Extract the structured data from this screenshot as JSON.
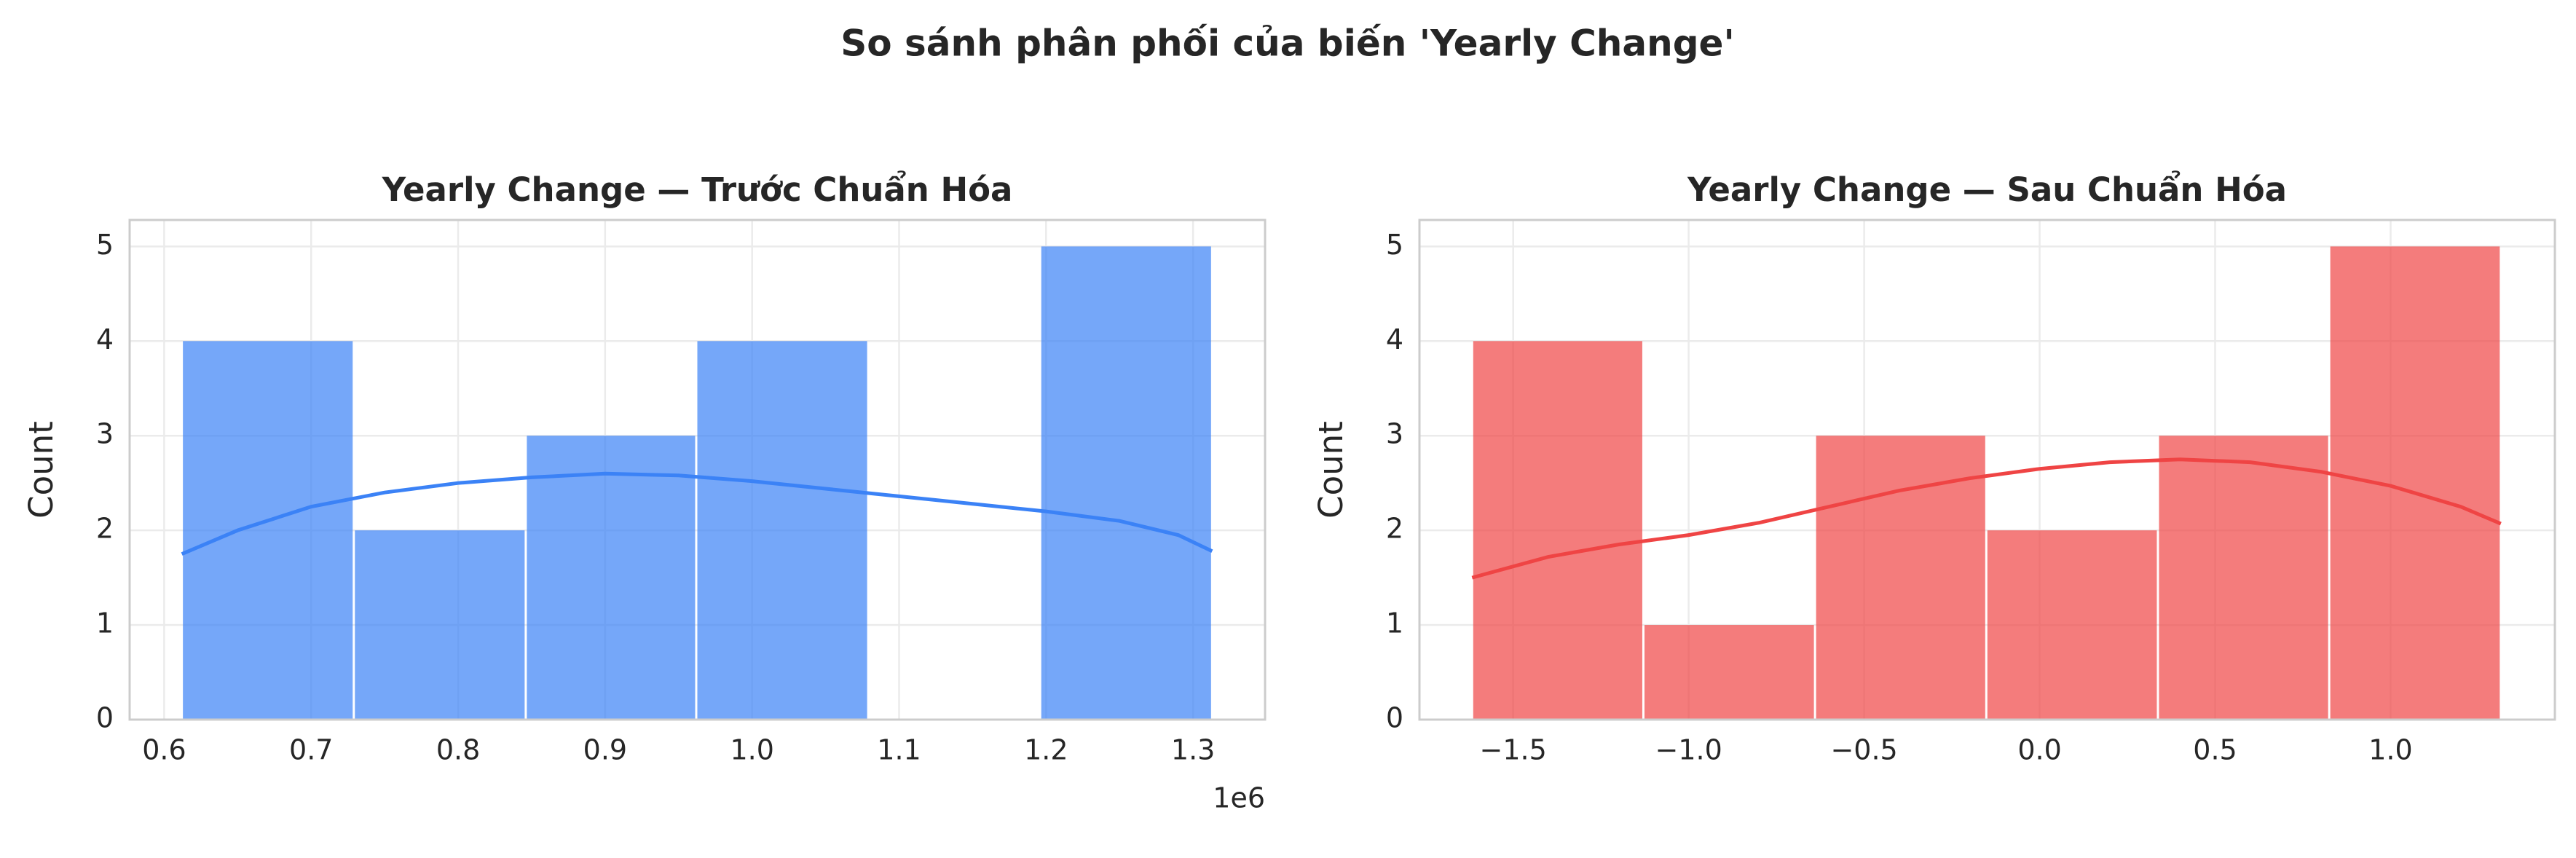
{
  "title": "So sánh phân phối của biến 'Yearly Change'",
  "chart_data": [
    {
      "type": "histogram",
      "title": "Yearly Change — Trước Chuẩn Hóa",
      "ylabel": "Count",
      "offset_label": "1e6",
      "color": "#3b82f6",
      "grid": true,
      "bins": [
        0.612,
        0.729,
        0.846,
        0.962,
        1.079,
        1.196,
        1.313
      ],
      "values": [
        4,
        2,
        3,
        4,
        0,
        5
      ],
      "kde": {
        "x": [
          0.612,
          0.65,
          0.7,
          0.75,
          0.8,
          0.85,
          0.9,
          0.95,
          1.0,
          1.05,
          1.1,
          1.15,
          1.2,
          1.25,
          1.29,
          1.313
        ],
        "values": [
          1.75,
          2.0,
          2.25,
          2.4,
          2.5,
          2.56,
          2.6,
          2.58,
          2.52,
          2.44,
          2.36,
          2.28,
          2.2,
          2.1,
          1.95,
          1.78
        ]
      },
      "xlim": [
        0.5765,
        1.349
      ],
      "ylim": [
        0,
        5.28
      ],
      "xticks": [
        0.6,
        0.7,
        0.8,
        0.9,
        {
          "value": 1.0,
          "label": "1.0"
        },
        1.1,
        1.2,
        1.3
      ],
      "yticks": [
        0,
        1,
        2,
        3,
        4,
        5
      ]
    },
    {
      "type": "histogram",
      "title": "Yearly Change — Sau Chuẩn Hóa",
      "ylabel": "Count",
      "color": "#ef4444",
      "grid": true,
      "bins": [
        -1.617,
        -1.129,
        -0.64,
        -0.152,
        0.337,
        0.825,
        1.314
      ],
      "values": [
        4,
        1,
        3,
        2,
        3,
        5
      ],
      "kde": {
        "x": [
          -1.617,
          -1.4,
          -1.2,
          -1.0,
          -0.8,
          -0.6,
          -0.4,
          -0.2,
          0.0,
          0.2,
          0.4,
          0.6,
          0.8,
          1.0,
          1.2,
          1.314
        ],
        "values": [
          1.5,
          1.72,
          1.85,
          1.95,
          2.08,
          2.25,
          2.42,
          2.55,
          2.65,
          2.72,
          2.75,
          2.72,
          2.62,
          2.47,
          2.25,
          2.07
        ]
      },
      "xlim": [
        -1.767,
        1.468
      ],
      "ylim": [
        0,
        5.28
      ],
      "xticks": [
        {
          "value": -1.5,
          "label": "−1.5"
        },
        {
          "value": -1.0,
          "label": "−1.0"
        },
        {
          "value": -0.5,
          "label": "−0.5"
        },
        {
          "value": 0.0,
          "label": "0.0"
        },
        0.5,
        {
          "value": 1.0,
          "label": "1.0"
        }
      ],
      "yticks": [
        0,
        1,
        2,
        3,
        4,
        5
      ]
    }
  ]
}
